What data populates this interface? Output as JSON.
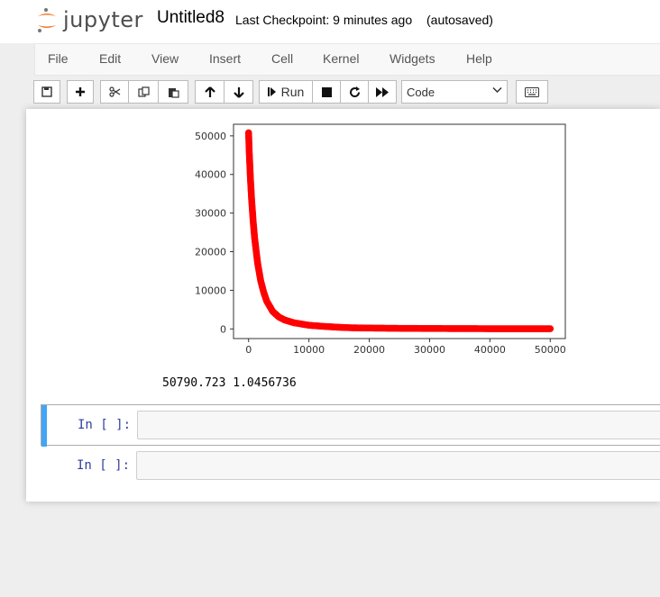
{
  "header": {
    "logo_text": "jupyter",
    "notebook_name": "Untitled8",
    "checkpoint": "Last Checkpoint: 9 minutes ago",
    "autosave": "(autosaved)"
  },
  "menu": {
    "items": [
      "File",
      "Edit",
      "View",
      "Insert",
      "Cell",
      "Kernel",
      "Widgets",
      "Help"
    ]
  },
  "toolbar": {
    "run_label": "Run",
    "cell_type": "Code",
    "icons": [
      "save-icon",
      "plus-icon",
      "cut-icon",
      "copy-icon",
      "paste-icon",
      "arrow-up-icon",
      "arrow-down-icon",
      "run-icon",
      "stop-icon",
      "restart-icon",
      "fast-forward-icon",
      "keyboard-icon"
    ]
  },
  "output": {
    "text": "50790.723 1.0456736"
  },
  "cells": [
    {
      "prompt": "In [ ]:",
      "code": ""
    },
    {
      "prompt": "In [ ]:",
      "code": ""
    }
  ],
  "chart_data": {
    "type": "scatter",
    "color": "#ff0000",
    "xlim": [
      -2500,
      52500
    ],
    "ylim": [
      -2500,
      53000
    ],
    "xticks": [
      0,
      10000,
      20000,
      30000,
      40000,
      50000
    ],
    "yticks": [
      0,
      10000,
      20000,
      30000,
      40000,
      50000
    ],
    "xtick_labels": [
      "0",
      "10000",
      "20000",
      "30000",
      "40000",
      "50000"
    ],
    "ytick_labels": [
      "0",
      "10000",
      "20000",
      "30000",
      "40000",
      "50000"
    ],
    "series": [
      {
        "x": [
          0,
          100,
          200,
          300,
          500,
          750,
          1000,
          1500,
          2000,
          2500,
          3000,
          4000,
          5000,
          6000,
          7500,
          10000,
          12500,
          15000,
          17000,
          20000,
          25000,
          30000,
          35000,
          40000,
          45000,
          50000
        ],
        "y": [
          50800,
          46000,
          42500,
          39000,
          33500,
          28000,
          23500,
          17000,
          12500,
          9500,
          7200,
          4500,
          3100,
          2300,
          1600,
          950,
          650,
          420,
          300,
          220,
          150,
          110,
          80,
          60,
          50,
          40
        ]
      }
    ]
  }
}
